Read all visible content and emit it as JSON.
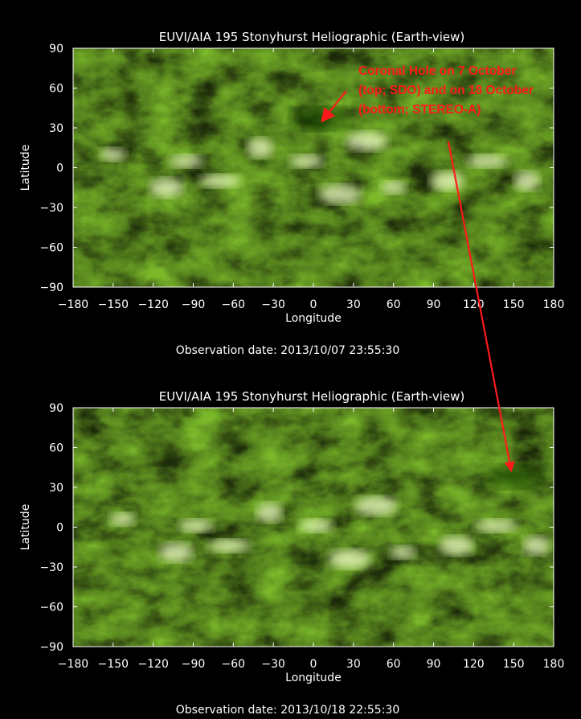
{
  "colors": {
    "background": "#000000",
    "text": "#ffffff",
    "annotation": "#ff1a1a",
    "map_dark": "#3c7008",
    "map_mid": "#7ab82a",
    "map_bright": "#eef9c8"
  },
  "annotation": {
    "lines": [
      "Coronal Hole on 7 October",
      "(top; SDO) and on 18 October",
      "(bottom; STEREO-A)"
    ]
  },
  "chart_data": [
    {
      "type": "heatmap",
      "title": "EUVI/AIA 195 Stonyhurst Heliographic (Earth-view)",
      "xlabel": "Longitude",
      "ylabel": "Latitude",
      "xlim": [
        -180,
        180
      ],
      "ylim": [
        -90,
        90
      ],
      "x_ticks": [
        -180,
        -150,
        -120,
        -90,
        -60,
        -30,
        0,
        30,
        60,
        90,
        120,
        150,
        180
      ],
      "y_ticks": [
        90,
        60,
        30,
        0,
        -30,
        -60,
        -90
      ],
      "x_tick_labels": [
        "−180",
        "−150",
        "−120",
        "−90",
        "−60",
        "−30",
        "0",
        "30",
        "60",
        "90",
        "120",
        "150",
        "180"
      ],
      "y_tick_labels": [
        "90",
        "60",
        "30",
        "0",
        "−30",
        "−60",
        "−90"
      ],
      "footer": "Observation date: 2013/10/07 23:55:30",
      "coronal_hole": {
        "lon": 5,
        "lat": 37
      }
    },
    {
      "type": "heatmap",
      "title": "EUVI/AIA 195 Stonyhurst Heliographic (Earth-view)",
      "xlabel": "Longitude",
      "ylabel": "Latitude",
      "xlim": [
        -180,
        180
      ],
      "ylim": [
        -90,
        90
      ],
      "x_ticks": [
        -180,
        -150,
        -120,
        -90,
        -60,
        -30,
        0,
        30,
        60,
        90,
        120,
        150,
        180
      ],
      "y_ticks": [
        90,
        60,
        30,
        0,
        -30,
        -60,
        -90
      ],
      "x_tick_labels": [
        "−180",
        "−150",
        "−120",
        "−90",
        "−60",
        "−30",
        "0",
        "30",
        "60",
        "90",
        "120",
        "150",
        "180"
      ],
      "y_tick_labels": [
        "90",
        "60",
        "30",
        "0",
        "−30",
        "−60",
        "−90"
      ],
      "footer": "Observation date: 2013/10/18 22:55:30",
      "coronal_hole": {
        "lon": 150,
        "lat": 38
      }
    }
  ]
}
